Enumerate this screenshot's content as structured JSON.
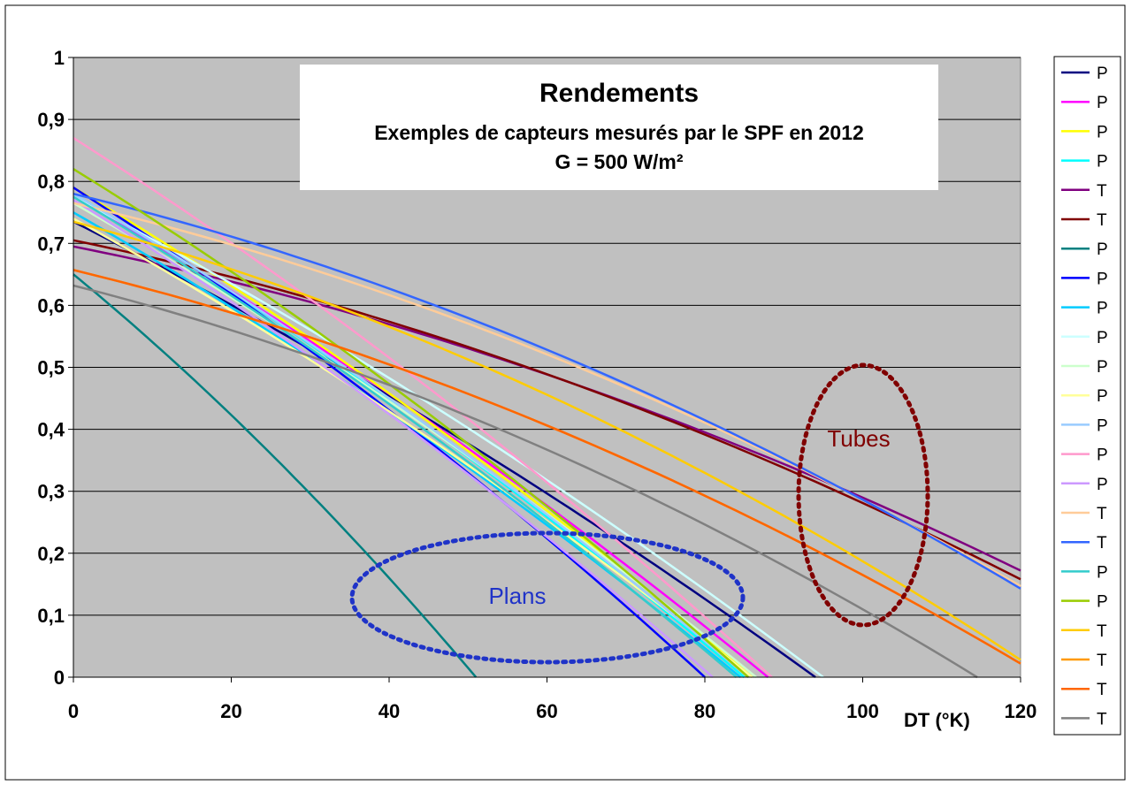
{
  "chart_data": {
    "type": "line",
    "title": "Rendements",
    "subtitle": "Exemples de capteurs mesurés par le SPF en 2012",
    "subtitle2": "G = 500 W/m²",
    "xlabel": "DT (°K)",
    "ylabel": "",
    "xlim": [
      0,
      120
    ],
    "ylim": [
      0,
      1
    ],
    "x_ticks": [
      0,
      20,
      40,
      60,
      80,
      100,
      120
    ],
    "y_ticks": [
      0,
      0.1,
      0.2,
      0.3,
      0.4,
      0.5,
      0.6,
      0.7,
      0.8,
      0.9,
      1
    ],
    "y_tick_labels": [
      "0",
      "0,1",
      "0,2",
      "0,3",
      "0,4",
      "0,5",
      "0,6",
      "0,7",
      "0,8",
      "0,9",
      "1"
    ],
    "grid": "horizontal",
    "legend_position": "right",
    "plot_background": "#c0c0c0",
    "annotations": [
      {
        "text": "Tubes",
        "color": "#800000"
      },
      {
        "text": "Plans",
        "color": "#1f33c8"
      }
    ],
    "series": [
      {
        "name": "P",
        "color": "#000080",
        "eta0": 0.735,
        "x_zero": 94.0
      },
      {
        "name": "P",
        "color": "#ff00ff",
        "eta0": 0.775,
        "x_zero": 88.0
      },
      {
        "name": "P",
        "color": "#ffff00",
        "eta0": 0.79,
        "x_zero": 86.0
      },
      {
        "name": "P",
        "color": "#00ffff",
        "eta0": 0.78,
        "x_zero": 85.0
      },
      {
        "name": "T",
        "color": "#800080",
        "eta0": 0.695,
        "y_end": 0.172
      },
      {
        "name": "T",
        "color": "#800000",
        "eta0": 0.705,
        "y_end": 0.158
      },
      {
        "name": "P",
        "color": "#008080",
        "eta0": 0.65,
        "x_zero": 51.0
      },
      {
        "name": "P",
        "color": "#0000ff",
        "eta0": 0.79,
        "x_zero": 80.0
      },
      {
        "name": "P",
        "color": "#00ccff",
        "eta0": 0.75,
        "x_zero": 84.5
      },
      {
        "name": "P",
        "color": "#ccffff",
        "eta0": 0.775,
        "x_zero": 95.0
      },
      {
        "name": "P",
        "color": "#ccffcc",
        "eta0": 0.765,
        "x_zero": 86.5
      },
      {
        "name": "P",
        "color": "#ffff99",
        "eta0": 0.74,
        "x_zero": 86.0
      },
      {
        "name": "P",
        "color": "#99ccff",
        "eta0": 0.78,
        "x_zero": 85.5
      },
      {
        "name": "P",
        "color": "#ff99cc",
        "eta0": 0.87,
        "x_zero": 88.5
      },
      {
        "name": "P",
        "color": "#cc99ff",
        "eta0": 0.77,
        "x_zero": 81.0
      },
      {
        "name": "T",
        "color": "#ffcc99",
        "eta0": 0.765,
        "y_end": 0.147
      },
      {
        "name": "T",
        "color": "#3366ff",
        "eta0": 0.78,
        "y_end": 0.143
      },
      {
        "name": "P",
        "color": "#33cccc",
        "eta0": 0.775,
        "x_zero": 84.0
      },
      {
        "name": "P",
        "color": "#99cc00",
        "eta0": 0.82,
        "x_zero": 85.5
      },
      {
        "name": "T",
        "color": "#ffcc00",
        "eta0": 0.735,
        "y_end": 0.028
      },
      {
        "name": "T",
        "color": "#ff9900",
        "eta0": 0.657,
        "y_end": 0.022
      },
      {
        "name": "T",
        "color": "#ff6600",
        "eta0": 0.657,
        "y_end": 0.022
      },
      {
        "name": "T",
        "color": "#808080",
        "eta0": 0.632,
        "x_zero": 114.5
      }
    ]
  }
}
